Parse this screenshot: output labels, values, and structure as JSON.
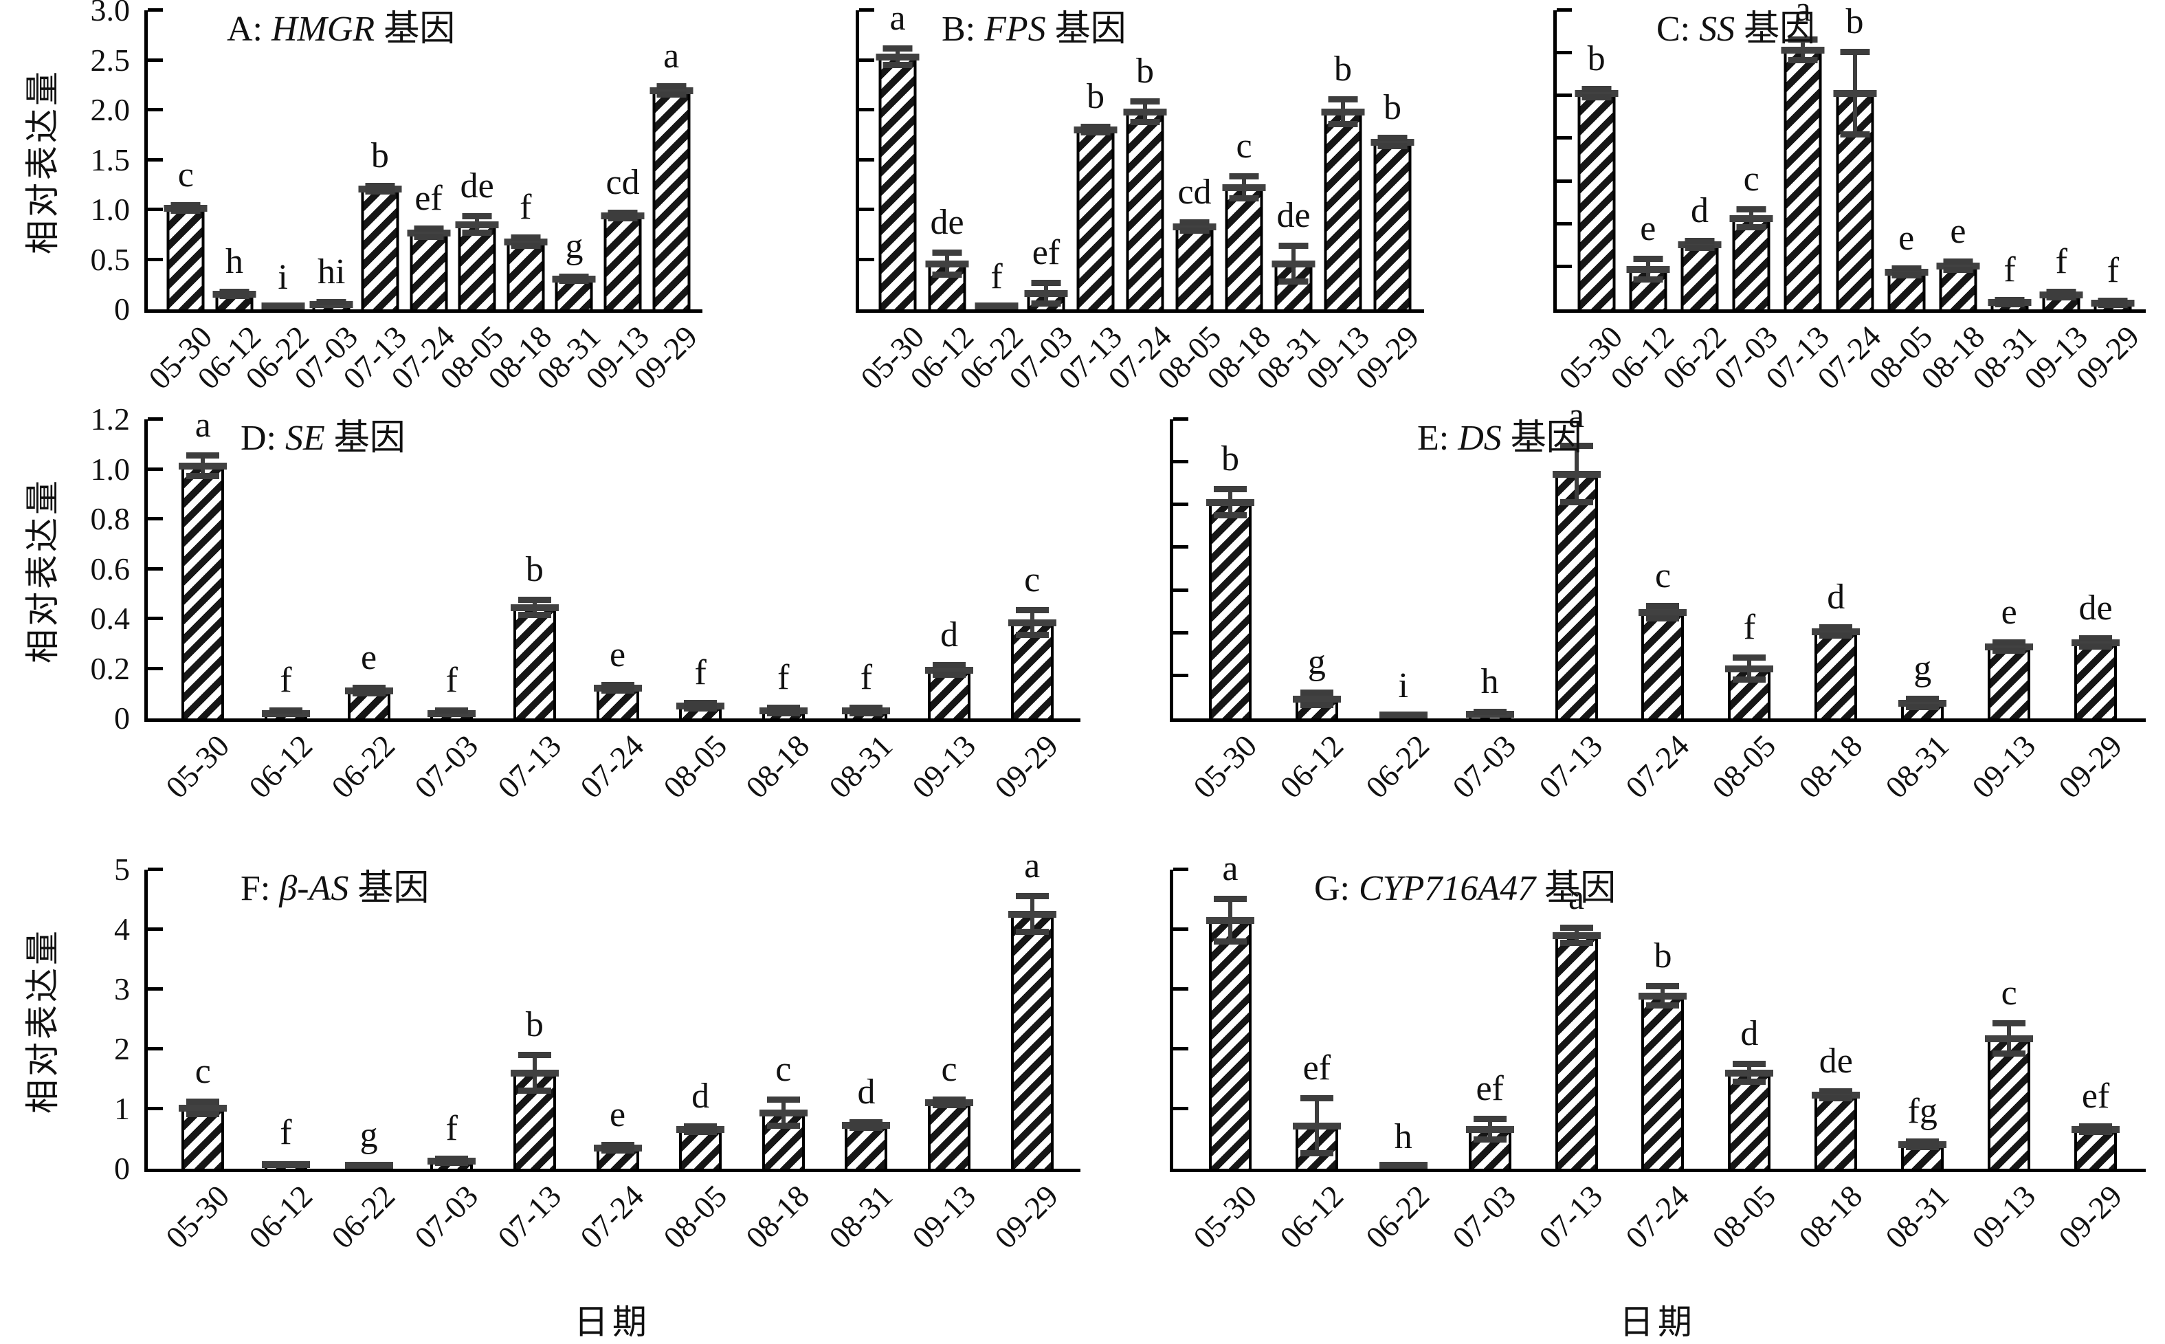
{
  "figure": {
    "y_axis_title": "相对表达量",
    "x_axis_title": "日期",
    "categories": [
      "05-30",
      "06-12",
      "06-22",
      "07-03",
      "07-13",
      "07-24",
      "08-05",
      "08-18",
      "08-31",
      "09-13",
      "09-29"
    ],
    "colors": {
      "bar_fill": "#ffffff",
      "bar_hatch": "#161616",
      "bar_edge": "#000000",
      "error_bar": "#3d3d3d",
      "text": "#111111",
      "background": "#ffffff"
    }
  },
  "chart_data": [
    {
      "id": "A",
      "type": "bar",
      "row": 0,
      "col": 0,
      "title_prefix": "A: ",
      "gene": "HMGR",
      "title_suffix": " 基因",
      "ylabel": "相对表达量",
      "show_y_labels": true,
      "show_x_title": false,
      "ymax": 3.0,
      "tick_count": 6,
      "ytick_labels": [
        "0",
        "0.5",
        "1.0",
        "1.5",
        "2.0",
        "2.5",
        "3.0"
      ],
      "values": [
        1.0,
        0.15,
        0.01,
        0.05,
        1.19,
        0.76,
        0.84,
        0.67,
        0.3,
        0.93,
        2.17
      ],
      "errors": [
        0.03,
        0.02,
        0.0,
        0.02,
        0.03,
        0.04,
        0.08,
        0.04,
        0.02,
        0.03,
        0.04
      ],
      "letters": [
        "c",
        "h",
        "i",
        "hi",
        "b",
        "ef",
        "de",
        "f",
        "g",
        "cd",
        "a"
      ]
    },
    {
      "id": "B",
      "type": "bar",
      "row": 0,
      "col": 1,
      "title_prefix": "B: ",
      "gene": "FPS",
      "title_suffix": " 基因",
      "ylabel": "",
      "show_y_labels": false,
      "show_x_title": false,
      "ymax": 3.0,
      "tick_count": 6,
      "ytick_labels": [],
      "values": [
        2.5,
        0.45,
        0.02,
        0.16,
        1.78,
        1.96,
        0.82,
        1.21,
        0.45,
        1.96,
        1.66
      ],
      "errors": [
        0.08,
        0.11,
        0.0,
        0.1,
        0.03,
        0.1,
        0.04,
        0.11,
        0.18,
        0.12,
        0.04
      ],
      "letters": [
        "a",
        "de",
        "f",
        "ef",
        "b",
        "b",
        "cd",
        "c",
        "de",
        "b",
        "b"
      ]
    },
    {
      "id": "C",
      "type": "bar",
      "row": 0,
      "col": 2,
      "title_prefix": "C: ",
      "gene": "SS",
      "title_suffix": " 基因",
      "ylabel": "",
      "show_y_labels": false,
      "show_x_title": false,
      "ymax": 3.5,
      "tick_count": 7,
      "ytick_labels": [],
      "values": [
        2.5,
        0.46,
        0.75,
        1.05,
        3.0,
        2.5,
        0.43,
        0.5,
        0.08,
        0.17,
        0.07
      ],
      "errors": [
        0.05,
        0.12,
        0.04,
        0.1,
        0.12,
        0.48,
        0.04,
        0.05,
        0.02,
        0.03,
        0.02
      ],
      "letters": [
        "b",
        "e",
        "d",
        "c",
        "a",
        "b",
        "e",
        "e",
        "f",
        "f",
        "f"
      ]
    },
    {
      "id": "D",
      "type": "bar",
      "row": 1,
      "col": 0,
      "title_prefix": "D: ",
      "gene": "SE",
      "title_suffix": " 基因",
      "ylabel": "相对表达量",
      "show_y_labels": true,
      "show_x_title": false,
      "ymax": 1.2,
      "tick_count": 6,
      "ytick_labels": [
        "0",
        "0.2",
        "0.4",
        "0.6",
        "0.8",
        "1.0",
        "1.2"
      ],
      "values": [
        1.0,
        0.02,
        0.11,
        0.02,
        0.44,
        0.12,
        0.05,
        0.03,
        0.03,
        0.19,
        0.38
      ],
      "errors": [
        0.04,
        0.01,
        0.01,
        0.01,
        0.03,
        0.01,
        0.01,
        0.01,
        0.01,
        0.02,
        0.05
      ],
      "letters": [
        "a",
        "f",
        "e",
        "f",
        "b",
        "e",
        "f",
        "f",
        "f",
        "d",
        "c"
      ]
    },
    {
      "id": "E",
      "type": "bar",
      "row": 1,
      "col": 1,
      "title_prefix": "E: ",
      "gene": "DS",
      "title_suffix": " 基因",
      "ylabel": "",
      "show_y_labels": false,
      "show_x_title": false,
      "ymax": 1.4,
      "tick_count": 7,
      "ytick_labels": [],
      "values": [
        1.0,
        0.09,
        0.01,
        0.02,
        1.13,
        0.49,
        0.23,
        0.4,
        0.07,
        0.33,
        0.35
      ],
      "errors": [
        0.06,
        0.03,
        0.0,
        0.01,
        0.13,
        0.03,
        0.05,
        0.02,
        0.02,
        0.02,
        0.02
      ],
      "letters": [
        "b",
        "g",
        "i",
        "h",
        "a",
        "c",
        "f",
        "d",
        "g",
        "e",
        "de"
      ]
    },
    {
      "id": "F",
      "type": "bar",
      "row": 2,
      "col": 0,
      "title_prefix": "F: ",
      "gene": "β-AS",
      "title_suffix": " 基因",
      "ylabel": "相对表达量",
      "show_y_labels": true,
      "show_x_title": true,
      "ymax": 5.0,
      "tick_count": 5,
      "ytick_labels": [
        "0",
        "1",
        "2",
        "3",
        "4",
        "5"
      ],
      "values": [
        1.0,
        0.07,
        0.03,
        0.12,
        1.58,
        0.34,
        0.65,
        0.92,
        0.72,
        1.09,
        4.2
      ],
      "errors": [
        0.1,
        0.02,
        0.01,
        0.03,
        0.3,
        0.05,
        0.05,
        0.22,
        0.04,
        0.04,
        0.3
      ],
      "letters": [
        "c",
        "f",
        "g",
        "f",
        "b",
        "e",
        "d",
        "c",
        "d",
        "c",
        "a"
      ]
    },
    {
      "id": "G",
      "type": "bar",
      "row": 2,
      "col": 1,
      "title_prefix": "G: ",
      "gene": "CYP716A47",
      "title_suffix": " 基因",
      "ylabel": "",
      "show_y_labels": false,
      "show_x_title": true,
      "ymax": 5.0,
      "tick_count": 5,
      "ytick_labels": [],
      "values": [
        4.1,
        0.7,
        0.02,
        0.65,
        3.85,
        2.85,
        1.58,
        1.22,
        0.4,
        2.15,
        0.65
      ],
      "errors": [
        0.35,
        0.45,
        0.0,
        0.17,
        0.12,
        0.16,
        0.15,
        0.06,
        0.05,
        0.25,
        0.05
      ],
      "letters": [
        "a",
        "ef",
        "h",
        "ef",
        "a",
        "b",
        "d",
        "de",
        "fg",
        "c",
        "ef"
      ]
    }
  ]
}
